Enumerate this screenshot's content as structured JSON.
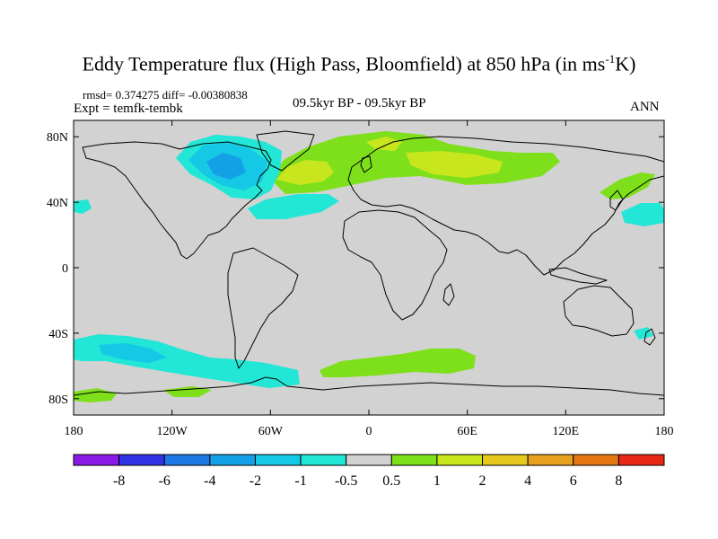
{
  "title": {
    "main": "Eddy Temperature flux (High Pass, Bloomfield) at 850 hPa (in ms",
    "exponent": "-1",
    "tail": "K)"
  },
  "stats": "rmsd= 0.374275 diff= -0.00380838",
  "experiment": "Expt = temfk-tembk",
  "period": "09.5kyr BP - 09.5kyr BP",
  "season": "ANN",
  "map": {
    "projection": "cylindrical-equidistant",
    "lon_range": [
      -180,
      180
    ],
    "lat_range": [
      -90,
      90
    ],
    "background_color": "#d2d2d2",
    "x_ticks": [
      {
        "lon": -180,
        "label": "180"
      },
      {
        "lon": -120,
        "label": "120W"
      },
      {
        "lon": -60,
        "label": "60W"
      },
      {
        "lon": 0,
        "label": "0"
      },
      {
        "lon": 60,
        "label": "60E"
      },
      {
        "lon": 120,
        "label": "120E"
      },
      {
        "lon": 180,
        "label": "180"
      }
    ],
    "y_ticks": [
      {
        "lat": 80,
        "label": "80N"
      },
      {
        "lat": 40,
        "label": "40N"
      },
      {
        "lat": 0,
        "label": "0"
      },
      {
        "lat": -40,
        "label": "40S"
      },
      {
        "lat": -80,
        "label": "80S"
      }
    ]
  },
  "colorbar": {
    "colors": [
      "#8c1ae6",
      "#3232e6",
      "#1e78e6",
      "#14a0e6",
      "#14c8e6",
      "#22e6d6",
      "#d2d2d2",
      "#7ee01a",
      "#c8e61e",
      "#e6c81e",
      "#e6a01e",
      "#e67814",
      "#e62814"
    ],
    "labels": [
      "-8",
      "-6",
      "-4",
      "-2",
      "-1",
      "-0.5",
      "0.5",
      "1",
      "2",
      "4",
      "6",
      "8"
    ]
  }
}
